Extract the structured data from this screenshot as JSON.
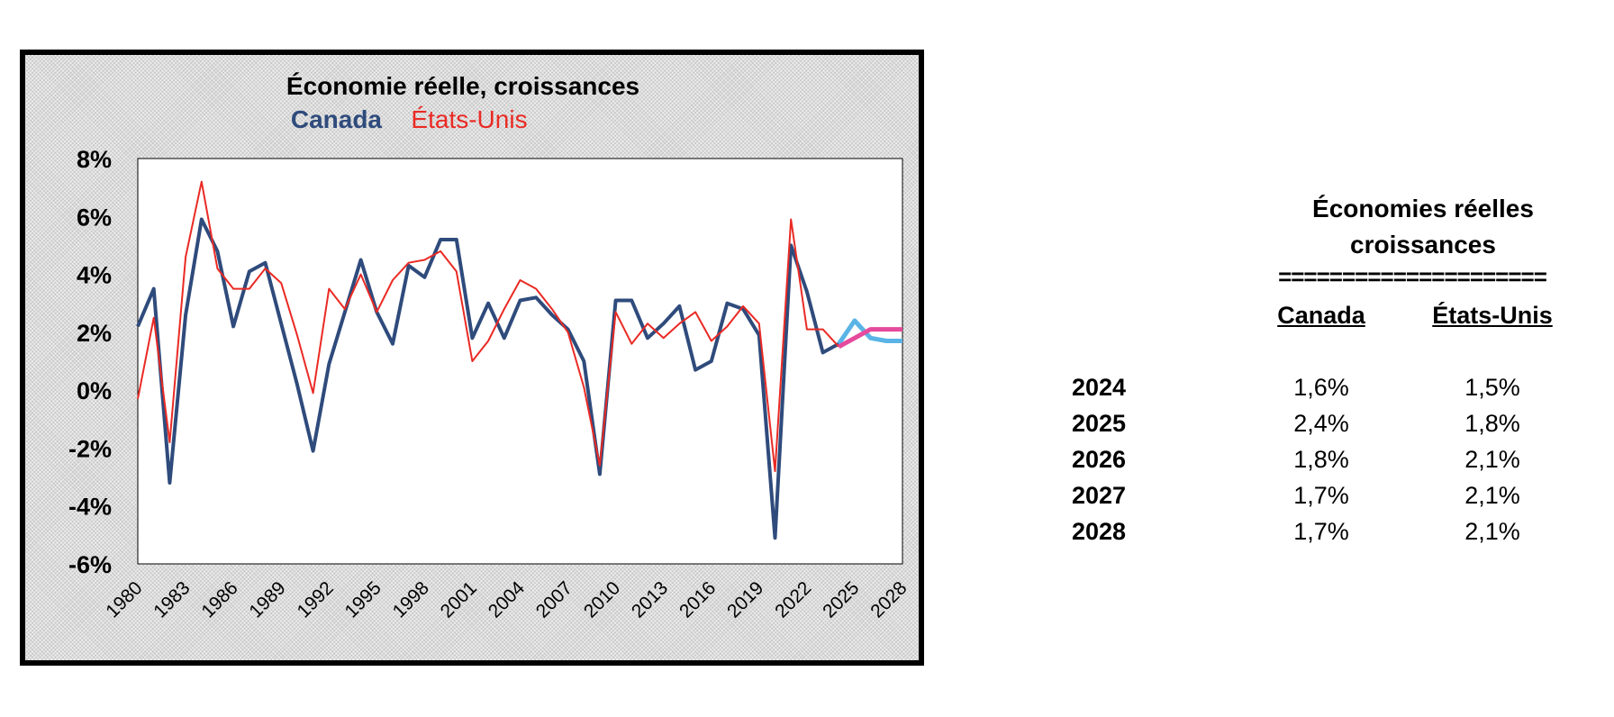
{
  "chart_data": {
    "type": "line",
    "title": "Économie réelle, croissances",
    "legend": [
      {
        "name": "Canada",
        "color": "#2f4b7c"
      },
      {
        "name": "États-Unis",
        "color": "#ea2a24"
      }
    ],
    "y_ticks": [
      "8%",
      "6%",
      "4%",
      "2%",
      "0%",
      "-2%",
      "-4%",
      "-6%"
    ],
    "ylim": [
      -6,
      8
    ],
    "x_ticks": [
      "1980",
      "1983",
      "1986",
      "1989",
      "1992",
      "1995",
      "1998",
      "2001",
      "2004",
      "2007",
      "2010",
      "2013",
      "2016",
      "2019",
      "2022",
      "2025",
      "2028"
    ],
    "xlim": [
      1980,
      2028
    ],
    "grid": false,
    "series": [
      {
        "name": "Canada",
        "color": "#2f4b7c",
        "x": [
          1980,
          1981,
          1982,
          1983,
          1984,
          1985,
          1986,
          1987,
          1988,
          1989,
          1990,
          1991,
          1992,
          1993,
          1994,
          1995,
          1996,
          1997,
          1998,
          1999,
          2000,
          2001,
          2002,
          2003,
          2004,
          2005,
          2006,
          2007,
          2008,
          2009,
          2010,
          2011,
          2012,
          2013,
          2014,
          2015,
          2016,
          2017,
          2018,
          2019,
          2020,
          2021,
          2022,
          2023,
          2024
        ],
        "values": [
          2.2,
          3.5,
          -3.2,
          2.6,
          5.9,
          4.8,
          2.2,
          4.1,
          4.4,
          2.3,
          0.2,
          -2.1,
          0.9,
          2.7,
          4.5,
          2.7,
          1.6,
          4.3,
          3.9,
          5.2,
          5.2,
          1.8,
          3.0,
          1.8,
          3.1,
          3.2,
          2.6,
          2.1,
          1.0,
          -2.9,
          3.1,
          3.1,
          1.8,
          2.3,
          2.9,
          0.7,
          1.0,
          3.0,
          2.8,
          1.9,
          -5.1,
          5.0,
          3.4,
          1.3,
          1.6
        ]
      },
      {
        "name": "États-Unis",
        "color": "#ea2a24",
        "x": [
          1980,
          1981,
          1982,
          1983,
          1984,
          1985,
          1986,
          1987,
          1988,
          1989,
          1990,
          1991,
          1992,
          1993,
          1994,
          1995,
          1996,
          1997,
          1998,
          1999,
          2000,
          2001,
          2002,
          2003,
          2004,
          2005,
          2006,
          2007,
          2008,
          2009,
          2010,
          2011,
          2012,
          2013,
          2014,
          2015,
          2016,
          2017,
          2018,
          2019,
          2020,
          2021,
          2022,
          2023,
          2024
        ],
        "values": [
          -0.3,
          2.5,
          -1.8,
          4.6,
          7.2,
          4.2,
          3.5,
          3.5,
          4.2,
          3.7,
          1.9,
          -0.1,
          3.5,
          2.8,
          4.0,
          2.7,
          3.8,
          4.4,
          4.5,
          4.8,
          4.1,
          1.0,
          1.7,
          2.8,
          3.8,
          3.5,
          2.8,
          2.0,
          0.1,
          -2.6,
          2.7,
          1.6,
          2.3,
          1.8,
          2.3,
          2.7,
          1.7,
          2.2,
          2.9,
          2.3,
          -2.8,
          5.9,
          2.1,
          2.1,
          1.5
        ]
      },
      {
        "name": "Canada",
        "color": "#5ab4e6",
        "x": [
          2024,
          2025,
          2026,
          2027,
          2028
        ],
        "values": [
          1.6,
          2.4,
          1.8,
          1.7,
          1.7
        ]
      },
      {
        "name": "États-Unis",
        "color": "#e54a9d",
        "x": [
          2024,
          2025,
          2026,
          2027,
          2028
        ],
        "values": [
          1.5,
          1.8,
          2.1,
          2.1,
          2.1
        ]
      }
    ]
  },
  "table": {
    "title_line1": "Économies réelles",
    "title_line2": "croissances",
    "separator": "=====================",
    "columns": [
      "Canada",
      "États-Unis"
    ],
    "rows": [
      {
        "year": "2024",
        "canada": "1,6%",
        "us": "1,5%"
      },
      {
        "year": "2025",
        "canada": "2,4%",
        "us": "1,8%"
      },
      {
        "year": "2026",
        "canada": "1,8%",
        "us": "2,1%"
      },
      {
        "year": "2027",
        "canada": "1,7%",
        "us": "2,1%"
      },
      {
        "year": "2028",
        "canada": "1,7%",
        "us": "2,1%"
      }
    ]
  }
}
